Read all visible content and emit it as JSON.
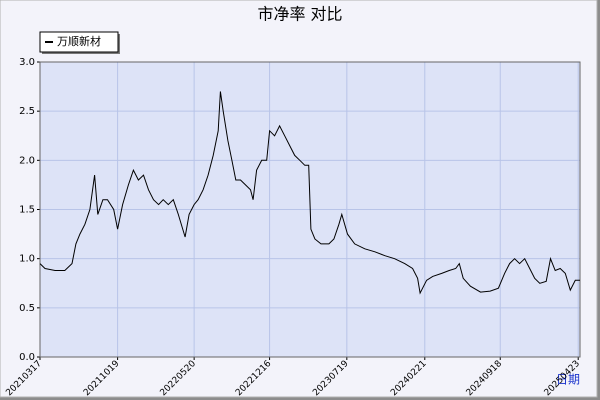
{
  "chart_data": {
    "type": "line",
    "title": "市净率  对比",
    "x_label": "日期",
    "x": [
      "2021-03-17",
      "2021-03-31",
      "2021-04-28",
      "2021-05-25",
      "2021-06-14",
      "2021-06-25",
      "2021-07-06",
      "2021-07-20",
      "2021-08-03",
      "2021-08-16",
      "2021-08-25",
      "2021-09-08",
      "2021-09-21",
      "2021-10-08",
      "2021-10-19",
      "2021-11-02",
      "2021-11-18",
      "2021-12-02",
      "2021-12-16",
      "2021-12-30",
      "2022-01-13",
      "2022-01-27",
      "2022-02-10",
      "2022-02-23",
      "2022-03-09",
      "2022-03-23",
      "2022-04-06",
      "2022-04-25",
      "2022-05-06",
      "2022-05-20",
      "2022-05-31",
      "2022-06-14",
      "2022-06-28",
      "2022-07-12",
      "2022-07-26",
      "2022-08-01",
      "2022-08-09",
      "2022-08-22",
      "2022-09-02",
      "2022-09-13",
      "2022-09-26",
      "2022-10-10",
      "2022-10-24",
      "2022-10-31",
      "2022-11-10",
      "2022-11-24",
      "2022-12-08",
      "2022-12-16",
      "2022-12-30",
      "2023-01-13",
      "2023-01-27",
      "2023-02-10",
      "2023-02-24",
      "2023-03-10",
      "2023-03-24",
      "2023-04-04",
      "2023-04-10",
      "2023-04-21",
      "2023-05-08",
      "2023-05-30",
      "2023-06-13",
      "2023-06-27",
      "2023-07-05",
      "2023-07-21",
      "2023-08-10",
      "2023-09-07",
      "2023-10-05",
      "2023-11-02",
      "2023-11-29",
      "2023-12-27",
      "2024-01-18",
      "2024-02-01",
      "2024-02-08",
      "2024-02-26",
      "2024-03-14",
      "2024-04-08",
      "2024-04-29",
      "2024-05-17",
      "2024-05-27",
      "2024-06-07",
      "2024-06-27",
      "2024-07-25",
      "2024-08-21",
      "2024-09-13",
      "2024-09-30",
      "2024-10-14",
      "2024-10-28",
      "2024-11-11",
      "2024-11-25",
      "2024-12-09",
      "2024-12-23",
      "2025-01-06",
      "2025-01-24",
      "2025-02-05",
      "2025-02-18",
      "2025-03-04",
      "2025-03-18",
      "2025-04-01",
      "2025-04-15",
      "2025-04-28"
    ],
    "series": [
      {
        "name": "万顺新材",
        "color": "#000000",
        "values": [
          0.95,
          0.9,
          0.88,
          0.88,
          0.95,
          1.15,
          1.25,
          1.35,
          1.5,
          1.85,
          1.45,
          1.6,
          1.6,
          1.5,
          1.3,
          1.55,
          1.75,
          1.9,
          1.8,
          1.85,
          1.7,
          1.6,
          1.55,
          1.6,
          1.55,
          1.6,
          1.45,
          1.22,
          1.45,
          1.55,
          1.6,
          1.7,
          1.85,
          2.05,
          2.3,
          2.7,
          2.5,
          2.2,
          2.0,
          1.8,
          1.8,
          1.75,
          1.7,
          1.6,
          1.9,
          2.0,
          2.0,
          2.3,
          2.25,
          2.35,
          2.25,
          2.15,
          2.05,
          2.0,
          1.95,
          1.95,
          1.3,
          1.2,
          1.15,
          1.15,
          1.2,
          1.35,
          1.45,
          1.25,
          1.15,
          1.1,
          1.07,
          1.03,
          1.0,
          0.95,
          0.9,
          0.8,
          0.65,
          0.78,
          0.82,
          0.85,
          0.88,
          0.9,
          0.95,
          0.8,
          0.72,
          0.66,
          0.67,
          0.7,
          0.85,
          0.95,
          1.0,
          0.95,
          1.0,
          0.9,
          0.8,
          0.75,
          0.77,
          1.0,
          0.88,
          0.9,
          0.85,
          0.68,
          0.78,
          0.78
        ]
      }
    ],
    "xlim": [
      "2021-03-17",
      "2025-04-28"
    ],
    "xticks": [
      {
        "value": "2021-03-17",
        "label": "20210317"
      },
      {
        "value": "2021-10-19",
        "label": "20211019"
      },
      {
        "value": "2022-05-20",
        "label": "20220520"
      },
      {
        "value": "2022-12-16",
        "label": "20221216"
      },
      {
        "value": "2023-07-19",
        "label": "20230719"
      },
      {
        "value": "2024-02-21",
        "label": "20240221"
      },
      {
        "value": "2024-09-18",
        "label": "20240918"
      },
      {
        "value": "2025-04-23",
        "label": "20250423"
      }
    ],
    "ylim": [
      0,
      3
    ],
    "yticks": [
      {
        "value": 0,
        "label": "0.0"
      },
      {
        "value": 0.5,
        "label": "0.5"
      },
      {
        "value": 1,
        "label": "1.0"
      },
      {
        "value": 1.5,
        "label": "1.5"
      },
      {
        "value": 2,
        "label": "2.0"
      },
      {
        "value": 2.5,
        "label": "2.5"
      },
      {
        "value": 3,
        "label": "3.0"
      }
    ],
    "grid": true,
    "legend": "top-left"
  }
}
